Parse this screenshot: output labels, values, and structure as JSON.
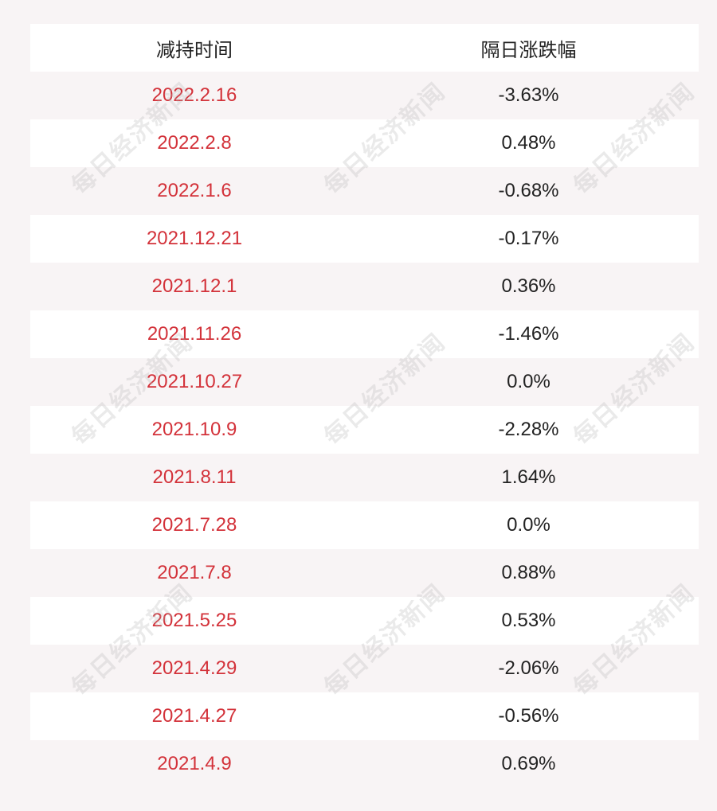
{
  "header": {
    "col1": "减持时间",
    "col2": "隔日涨跌幅"
  },
  "rows": [
    {
      "date": "2022.2.16",
      "change": "-3.63%"
    },
    {
      "date": "2022.2.8",
      "change": "0.48%"
    },
    {
      "date": "2022.1.6",
      "change": "-0.68%"
    },
    {
      "date": "2021.12.21",
      "change": "-0.17%"
    },
    {
      "date": "2021.12.1",
      "change": "0.36%"
    },
    {
      "date": "2021.11.26",
      "change": "-1.46%"
    },
    {
      "date": "2021.10.27",
      "change": "0.0%"
    },
    {
      "date": "2021.10.9",
      "change": "-2.28%"
    },
    {
      "date": "2021.8.11",
      "change": "1.64%"
    },
    {
      "date": "2021.7.28",
      "change": "0.0%"
    },
    {
      "date": "2021.7.8",
      "change": "0.88%"
    },
    {
      "date": "2021.5.25",
      "change": "0.53%"
    },
    {
      "date": "2021.4.29",
      "change": "-2.06%"
    },
    {
      "date": "2021.4.27",
      "change": "-0.56%"
    },
    {
      "date": "2021.4.9",
      "change": "0.69%"
    }
  ],
  "watermark": "每日经济新闻",
  "colors": {
    "date_text": "#d3323a",
    "value_text": "#222222",
    "row_white": "#ffffff",
    "row_pink": "#f8f4f5"
  }
}
